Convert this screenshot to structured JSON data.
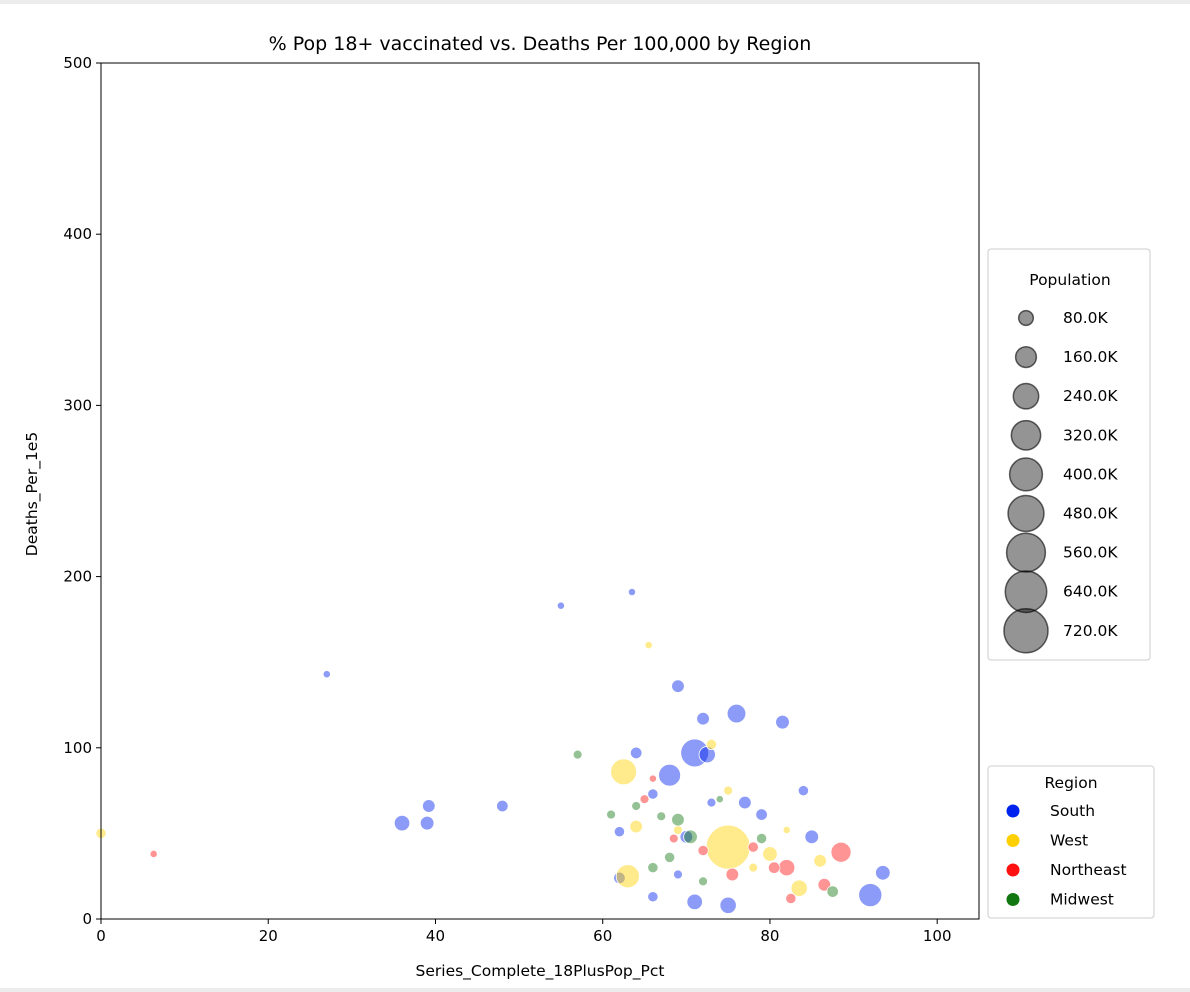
{
  "chart_data": {
    "type": "scatter",
    "title": "% Pop 18+ vaccinated vs. Deaths Per 100,000 by Region",
    "xlabel": "Series_Complete_18PlusPop_Pct",
    "ylabel": "Deaths_Per_1e5",
    "xlim": [
      0,
      105
    ],
    "ylim": [
      0,
      500
    ],
    "xticks": [
      "0",
      "20",
      "40",
      "60",
      "80",
      "100"
    ],
    "yticks": [
      "0",
      "100",
      "200",
      "300",
      "400",
      "500"
    ],
    "grid": false,
    "size_legend": {
      "title": "Population",
      "entries": [
        "80.0K",
        "160.0K",
        "240.0K",
        "320.0K",
        "400.0K",
        "480.0K",
        "560.0K",
        "640.0K",
        "720.0K"
      ]
    },
    "region_legend": {
      "title": "Region",
      "entries": [
        {
          "name": "South",
          "color": "#0022ee"
        },
        {
          "name": "West",
          "color": "#ffd000"
        },
        {
          "name": "Northeast",
          "color": "#ff1111"
        },
        {
          "name": "Midwest",
          "color": "#117711"
        }
      ]
    },
    "series": [
      {
        "name": "South",
        "color": "#0022ee",
        "points": [
          [
            76,
            120,
            130000
          ],
          [
            71,
            97,
            290000
          ],
          [
            69,
            136,
            60000
          ],
          [
            72,
            117,
            60000
          ],
          [
            81.5,
            115,
            70000
          ],
          [
            92,
            14,
            200000
          ],
          [
            93.5,
            27,
            80000
          ],
          [
            36,
            56,
            90000
          ],
          [
            39,
            56,
            70000
          ],
          [
            39.2,
            66,
            60000
          ],
          [
            48,
            66,
            50000
          ],
          [
            77,
            68,
            60000
          ],
          [
            85,
            48,
            70000
          ],
          [
            84,
            75,
            40000
          ],
          [
            75,
            8,
            100000
          ],
          [
            71,
            10,
            90000
          ],
          [
            68,
            84,
            180000
          ],
          [
            64,
            97,
            50000
          ],
          [
            66,
            13,
            40000
          ],
          [
            70,
            48,
            60000
          ],
          [
            72.5,
            96,
            100000
          ],
          [
            62,
            24,
            50000
          ],
          [
            79,
            61,
            50000
          ],
          [
            63.5,
            191,
            20000
          ],
          [
            55,
            183,
            20000
          ],
          [
            27,
            143,
            20000
          ],
          [
            62,
            51,
            40000
          ],
          [
            66,
            73,
            40000
          ],
          [
            69,
            26,
            30000
          ],
          [
            73,
            68,
            30000
          ]
        ]
      },
      {
        "name": "West",
        "color": "#ffd000",
        "points": [
          [
            75,
            42,
            720000
          ],
          [
            62.5,
            86,
            250000
          ],
          [
            63,
            25,
            200000
          ],
          [
            83.5,
            18,
            100000
          ],
          [
            86,
            34,
            60000
          ],
          [
            80,
            38,
            80000
          ],
          [
            0,
            50,
            40000
          ],
          [
            65.5,
            160,
            20000
          ],
          [
            73,
            102,
            40000
          ],
          [
            64,
            54,
            60000
          ],
          [
            69,
            52,
            30000
          ],
          [
            75,
            75,
            30000
          ],
          [
            82,
            52,
            20000
          ],
          [
            78,
            30,
            30000
          ]
        ]
      },
      {
        "name": "Northeast",
        "color": "#ff1111",
        "points": [
          [
            88.5,
            39,
            150000
          ],
          [
            82,
            30,
            100000
          ],
          [
            6.3,
            38,
            20000
          ],
          [
            86.5,
            20,
            60000
          ],
          [
            75.5,
            26,
            60000
          ],
          [
            80.5,
            30,
            50000
          ],
          [
            72,
            40,
            40000
          ],
          [
            65,
            70,
            30000
          ],
          [
            78,
            42,
            40000
          ],
          [
            68.5,
            47,
            30000
          ],
          [
            82.5,
            12,
            40000
          ],
          [
            66,
            82,
            20000
          ]
        ]
      },
      {
        "name": "Midwest",
        "color": "#117711",
        "points": [
          [
            69,
            58,
            60000
          ],
          [
            70.5,
            48,
            70000
          ],
          [
            68,
            36,
            40000
          ],
          [
            87.5,
            16,
            50000
          ],
          [
            64,
            66,
            30000
          ],
          [
            72,
            22,
            30000
          ],
          [
            61,
            61,
            30000
          ],
          [
            57,
            96,
            30000
          ],
          [
            66,
            30,
            40000
          ],
          [
            79,
            47,
            40000
          ],
          [
            67,
            60,
            30000
          ],
          [
            74,
            70,
            20000
          ]
        ]
      }
    ]
  }
}
